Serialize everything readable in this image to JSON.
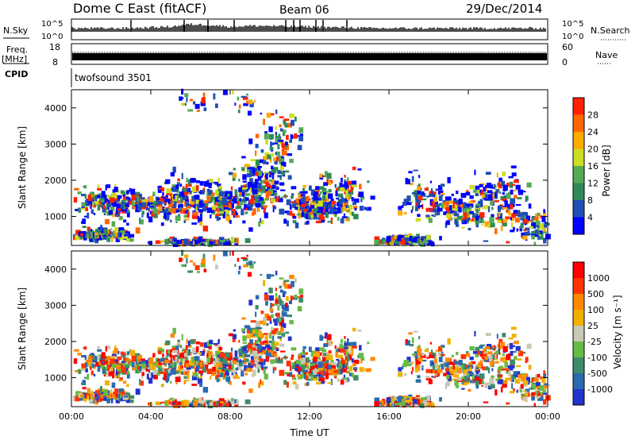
{
  "header": {
    "station": "Dome C East (fitACF)",
    "beam": "Beam 06",
    "date": "29/Dec/2014"
  },
  "colors": {
    "power_scale": [
      "#0000ff",
      "#1f4fb5",
      "#2e8b57",
      "#55aa55",
      "#ccdd22",
      "#ffaa00",
      "#ff6600",
      "#ff2200"
    ],
    "velocity_scale": [
      "#2233cc",
      "#2a6ab0",
      "#3d8c6a",
      "#66bb44",
      "#c8c8b4",
      "#f0b000",
      "#ff8800",
      "#ff3300",
      "#ff0000"
    ]
  },
  "chart_data": [
    {
      "type": "line",
      "panel": "nsky-nsearch",
      "left_label": "N.Sky",
      "right_label": "N.Search",
      "left_ticks": [
        "10^5",
        "10^0"
      ],
      "right_ticks": [
        "10^5",
        "10^0"
      ],
      "x_range": [
        0,
        24
      ],
      "description_series": [
        {
          "name": "N.Sky",
          "values": [
            1.5,
            1.5,
            1.5,
            1.5,
            1.6,
            1.7,
            2.0,
            1.9,
            1.7,
            1.8,
            1.8,
            1.7,
            1.7,
            1.6,
            1.6,
            1.5,
            1.5,
            1.5,
            1.5,
            1.5,
            1.5,
            1.5,
            1.5,
            1.5,
            1.5
          ]
        }
      ]
    },
    {
      "type": "line",
      "panel": "freq-nave",
      "left_label_1": "Freq.",
      "left_label_2": "[MHz]",
      "right_label": "Nave",
      "left_ticks": [
        "18",
        "8"
      ],
      "right_ticks": [
        "60",
        "0"
      ],
      "x_range": [
        0,
        24
      ]
    },
    {
      "type": "text",
      "panel": "cpid",
      "label": "CPID",
      "program": "twofsound 3501"
    },
    {
      "type": "heatmap",
      "panel": "power",
      "ylabel": "Slant Range [km]",
      "yticks": [
        1000,
        2000,
        3000,
        4000
      ],
      "ylim": [
        200,
        4500
      ],
      "xlim": [
        0,
        24
      ],
      "colorbar_label": "Power [dB]",
      "colorbar_ticks": [
        4,
        8,
        12,
        16,
        20,
        24,
        28
      ],
      "colorbar_range": [
        0,
        32
      ]
    },
    {
      "type": "heatmap",
      "panel": "velocity",
      "ylabel": "Slant Range [km]",
      "yticks": [
        1000,
        2000,
        3000,
        4000
      ],
      "ylim": [
        200,
        4500
      ],
      "xlim": [
        0,
        24
      ],
      "colorbar_label": "Velocity [m s⁻¹]",
      "colorbar_ticks": [
        "1000",
        "500",
        "100",
        "25",
        "-25",
        "-100",
        "-500",
        "-1000"
      ]
    }
  ],
  "x_axis": {
    "ticks": [
      "00:00",
      "04:00",
      "08:00",
      "12:00",
      "16:00",
      "20:00",
      "00:00"
    ],
    "tick_hours": [
      0,
      4,
      8,
      12,
      16,
      20,
      24
    ],
    "label": "Time UT"
  }
}
